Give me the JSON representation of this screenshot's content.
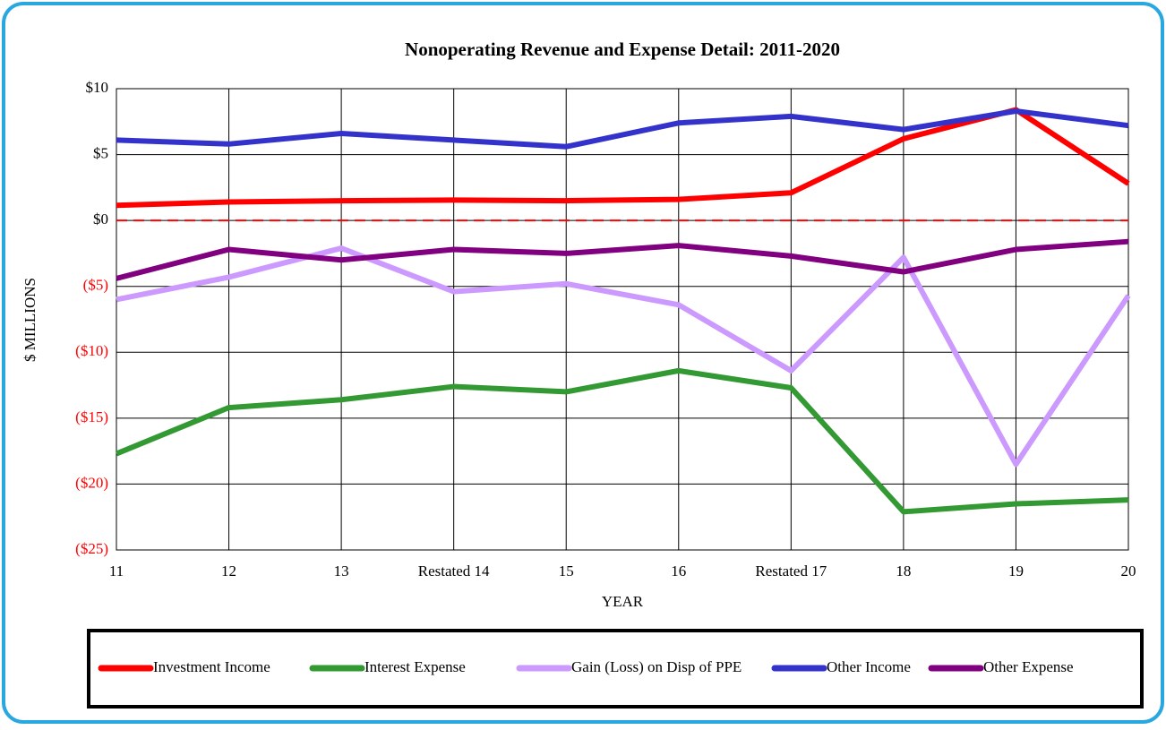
{
  "chart_data": {
    "type": "line",
    "title": "Nonoperating Revenue and Expense Detail: 2011-2020",
    "x_label": "YEAR",
    "y_label": "$ MILLIONS",
    "categories": [
      "11",
      "12",
      "13",
      "Restated 14",
      "15",
      "16",
      "Restated 17",
      "18",
      "19",
      "20"
    ],
    "ylim": [
      -25,
      10
    ],
    "yticks": [
      {
        "value": 10,
        "label": "$10"
      },
      {
        "value": 5,
        "label": "$5"
      },
      {
        "value": 0,
        "label": "$0"
      },
      {
        "value": -5,
        "label": "($5)"
      },
      {
        "value": -10,
        "label": "($10)"
      },
      {
        "value": -15,
        "label": "($15)"
      },
      {
        "value": -20,
        "label": "($20)"
      },
      {
        "value": -25,
        "label": "($25)"
      }
    ],
    "negative_tick_color": "#ff0000",
    "grid": true,
    "reference_line": {
      "value": 0,
      "color": "#ff0000"
    },
    "legend": "bottom",
    "series": [
      {
        "name": "Investment Income",
        "color": "#ff0000",
        "values": [
          1.15,
          1.4,
          1.5,
          1.55,
          1.5,
          1.6,
          2.1,
          6.2,
          8.4,
          2.8
        ]
      },
      {
        "name": "Interest Expense",
        "color": "#339933",
        "values": [
          -17.7,
          -14.2,
          -13.6,
          -12.6,
          -13.0,
          -11.4,
          -12.7,
          -22.1,
          -21.5,
          -21.2
        ]
      },
      {
        "name": "Gain (Loss) on Disp of PPE",
        "color": "#cc99ff",
        "values": [
          -6.0,
          -4.3,
          -2.1,
          -5.4,
          -4.8,
          -6.4,
          -11.4,
          -2.8,
          -18.5,
          -5.7
        ]
      },
      {
        "name": "Other Income",
        "color": "#3333cc",
        "values": [
          6.1,
          5.8,
          6.6,
          6.1,
          5.6,
          7.4,
          7.9,
          6.9,
          8.3,
          7.2
        ]
      },
      {
        "name": "Other Expense",
        "color": "#800080",
        "values": [
          -4.4,
          -2.2,
          -3.0,
          -2.2,
          -2.5,
          -1.9,
          -2.7,
          -3.9,
          -2.2,
          -1.6
        ]
      }
    ]
  }
}
